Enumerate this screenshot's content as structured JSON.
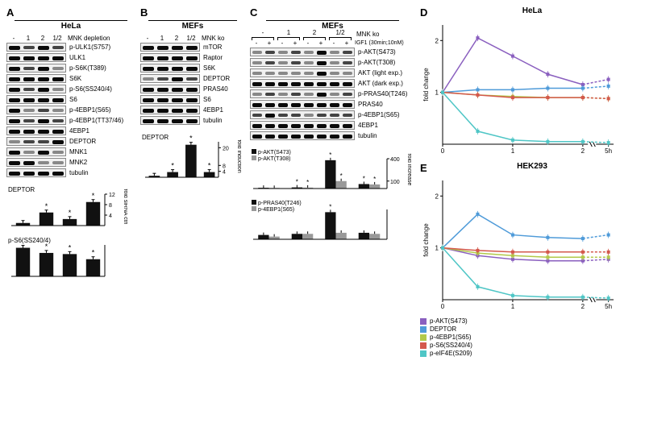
{
  "panelA": {
    "label": "A",
    "title": "HeLa",
    "header": {
      "lanes": [
        "-",
        "1",
        "2",
        "1/2"
      ],
      "right": "MNK depletion"
    },
    "blots": [
      {
        "label": "p-ULK1(S757)",
        "bands": [
          "strong",
          "med",
          "strong",
          "med"
        ]
      },
      {
        "label": "ULK1",
        "bands": [
          "strong",
          "strong",
          "strong",
          "strong"
        ]
      },
      {
        "label": "p-S6K(T389)",
        "bands": [
          "strong",
          "med",
          "strong",
          "faint"
        ]
      },
      {
        "label": "S6K",
        "bands": [
          "strong",
          "strong",
          "strong",
          "strong"
        ]
      },
      {
        "label": "p-S6(SS240/4)",
        "bands": [
          "strong",
          "med",
          "strong",
          "faint"
        ]
      },
      {
        "label": "S6",
        "bands": [
          "strong",
          "strong",
          "strong",
          "strong"
        ]
      },
      {
        "label": "p-4EBP1(S65)",
        "bands": [
          "strong",
          "faint",
          "med",
          "faint"
        ]
      },
      {
        "label": "p-4EBP1(TT37/46)",
        "bands": [
          "strong",
          "med",
          "strong",
          "med"
        ]
      },
      {
        "label": "4EBP1",
        "bands": [
          "strong",
          "strong",
          "strong",
          "strong"
        ]
      },
      {
        "label": "DEPTOR",
        "bands": [
          "faint",
          "med",
          "med",
          "strong"
        ]
      },
      {
        "label": "MNK1",
        "bands": [
          "strong",
          "faint",
          "strong",
          "faint"
        ]
      },
      {
        "label": "MNK2",
        "bands": [
          "strong",
          "strong",
          "faint",
          "faint"
        ]
      },
      {
        "label": "tubulin",
        "bands": [
          "strong",
          "strong",
          "strong",
          "strong"
        ]
      }
    ],
    "barcharts": [
      {
        "title": "DEPTOR",
        "categories": [
          "-",
          "1",
          "2",
          "1/2"
        ],
        "values": [
          1,
          5,
          2.5,
          9
        ],
        "stars": [
          0,
          1,
          1,
          1
        ],
        "ylim": [
          0,
          12
        ],
        "yticks": [
          4,
          8,
          12
        ],
        "bar_color": "#111111",
        "ylabel": "fold siRNA ctrl"
      },
      {
        "title": "p-S6(SS240/4)",
        "categories": [
          "-",
          "1",
          "2",
          "1/2"
        ],
        "values": [
          1,
          0.82,
          0.78,
          0.6
        ],
        "stars": [
          0,
          1,
          1,
          1
        ],
        "ylim": [
          0,
          1.1
        ],
        "yticks": [],
        "bar_color": "#111111",
        "ylabel": ""
      }
    ]
  },
  "panelB": {
    "label": "B",
    "title": "MEFs",
    "header": {
      "lanes": [
        "-",
        "1",
        "2",
        "1/2"
      ],
      "right": "MNK ko"
    },
    "blots": [
      {
        "label": "mTOR",
        "bands": [
          "strong",
          "strong",
          "strong",
          "strong"
        ]
      },
      {
        "label": "Raptor",
        "bands": [
          "strong",
          "strong",
          "strong",
          "strong"
        ]
      },
      {
        "label": "S6K",
        "bands": [
          "strong",
          "strong",
          "strong",
          "strong"
        ]
      },
      {
        "label": "DEPTOR",
        "bands": [
          "faint",
          "med",
          "strong",
          "med"
        ]
      },
      {
        "label": "PRAS40",
        "bands": [
          "strong",
          "strong",
          "strong",
          "strong"
        ]
      },
      {
        "label": "S6",
        "bands": [
          "strong",
          "strong",
          "strong",
          "strong"
        ]
      },
      {
        "label": "4EBP1",
        "bands": [
          "strong",
          "strong",
          "strong",
          "strong"
        ]
      },
      {
        "label": "tubulin",
        "bands": [
          "strong",
          "strong",
          "strong",
          "strong"
        ]
      }
    ],
    "barchart": {
      "title": "DEPTOR",
      "categories": [
        "-",
        "1",
        "2",
        "1/2"
      ],
      "values": [
        1,
        3.5,
        22,
        3.5
      ],
      "stars": [
        0,
        1,
        1,
        1
      ],
      "ylim": [
        0,
        24
      ],
      "yticks": [
        4,
        8,
        20
      ],
      "bar_color": "#111111",
      "ylabel": "fold induction"
    }
  },
  "panelC": {
    "label": "C",
    "title": "MEFs",
    "brackets": [
      "-",
      "1",
      "2",
      "1/2"
    ],
    "bracket_label": "MNK ko",
    "cond_label": "IGF1 (30min;10nM)",
    "cond": [
      "-",
      "+",
      "-",
      "+",
      "-",
      "+",
      "-",
      "+"
    ],
    "blots": [
      {
        "label": "p-AKT(S473)",
        "bands": [
          "faint",
          "med",
          "faint",
          "med",
          "faint",
          "strong",
          "faint",
          "med"
        ]
      },
      {
        "label": "p-AKT(T308)",
        "bands": [
          "faint",
          "med",
          "faint",
          "med",
          "faint",
          "strong",
          "faint",
          "med"
        ]
      },
      {
        "label": "AKT (light exp.)",
        "bands": [
          "faint",
          "faint",
          "faint",
          "faint",
          "faint",
          "strong",
          "faint",
          "faint"
        ]
      },
      {
        "label": "AKT (dark exp.)",
        "bands": [
          "strong",
          "strong",
          "strong",
          "strong",
          "strong",
          "strong",
          "strong",
          "strong"
        ]
      },
      {
        "label": "p-PRAS40(T246)",
        "bands": [
          "faint",
          "med",
          "faint",
          "med",
          "faint",
          "strong",
          "faint",
          "med"
        ]
      },
      {
        "label": "PRAS40",
        "bands": [
          "strong",
          "strong",
          "strong",
          "strong",
          "strong",
          "strong",
          "strong",
          "strong"
        ]
      },
      {
        "label": "p-4EBP1(S65)",
        "bands": [
          "med",
          "strong",
          "med",
          "med",
          "faint",
          "med",
          "med",
          "med"
        ]
      },
      {
        "label": "4EBP1",
        "bands": [
          "strong",
          "strong",
          "strong",
          "strong",
          "strong",
          "strong",
          "strong",
          "strong"
        ]
      },
      {
        "label": "tubulin",
        "bands": [
          "strong",
          "strong",
          "strong",
          "strong",
          "strong",
          "strong",
          "strong",
          "strong"
        ]
      }
    ],
    "barcharts": [
      {
        "stacks": [
          {
            "label": "p-AKT(S473)",
            "color": "#111111"
          },
          {
            "label": "p-AKT(T308)",
            "color": "#999999"
          }
        ],
        "categories": [
          "-",
          "1",
          "2",
          "1/2"
        ],
        "values": [
          [
            10,
            8
          ],
          [
            15,
            12
          ],
          [
            380,
            100
          ],
          [
            60,
            55
          ]
        ],
        "stars": [
          [
            0,
            0
          ],
          [
            1,
            1
          ],
          [
            1,
            1
          ],
          [
            1,
            1
          ]
        ],
        "ylim": [
          0,
          400
        ],
        "yticks": [
          100,
          400
        ],
        "ylabel": "fold increase"
      },
      {
        "stacks": [
          {
            "label": "p-PRAS40(T246)",
            "color": "#111111"
          },
          {
            "label": "p-4EBP1(S65)",
            "color": "#999999"
          }
        ],
        "categories": [
          "-",
          "1",
          "2",
          "1/2"
        ],
        "values": [
          [
            8,
            5
          ],
          [
            10,
            10
          ],
          [
            50,
            12
          ],
          [
            12,
            10
          ]
        ],
        "stars": [
          [
            0,
            0
          ],
          [
            0,
            0
          ],
          [
            1,
            0
          ],
          [
            0,
            0
          ]
        ],
        "ylim": [
          0,
          55
        ],
        "yticks": [],
        "ylabel": ""
      }
    ]
  },
  "panelD": {
    "label": "D",
    "title": "HeLa",
    "x": [
      0,
      0.5,
      1,
      1.5,
      2,
      5
    ],
    "xticks": [
      0,
      1,
      2,
      5
    ],
    "ylim": [
      0,
      2.3
    ],
    "yticks": [
      1,
      2
    ],
    "ylabel": "fold change",
    "series": [
      {
        "name": "p-AKT(S473)",
        "color": "#8a5fbf",
        "y": [
          1,
          2.05,
          1.7,
          1.35,
          1.15,
          1.25
        ]
      },
      {
        "name": "DEPTOR",
        "color": "#4f9bd9",
        "y": [
          1,
          1.05,
          1.05,
          1.08,
          1.08,
          1.12
        ]
      },
      {
        "name": "p-4EBP1(S65)",
        "color": "#b2c94a",
        "y": [
          1,
          0.95,
          0.92,
          0.9,
          0.9,
          0.88
        ]
      },
      {
        "name": "p-S6(SS240/4)",
        "color": "#d4584c",
        "y": [
          1,
          0.95,
          0.9,
          0.9,
          0.9,
          0.88
        ]
      },
      {
        "name": "p-eIF4E(S209)",
        "color": "#4fc6c6",
        "y": [
          1,
          0.25,
          0.08,
          0.05,
          0.05,
          0.03
        ]
      }
    ]
  },
  "panelE": {
    "label": "E",
    "title": "HEK293",
    "x": [
      0,
      0.5,
      1,
      1.5,
      2,
      5
    ],
    "xticks": [
      0,
      1,
      2,
      5
    ],
    "ylim": [
      0,
      2.3
    ],
    "yticks": [
      1,
      2
    ],
    "ylabel": "fold change",
    "series": [
      {
        "name": "p-AKT(S473)",
        "color": "#8a5fbf",
        "y": [
          1,
          0.85,
          0.78,
          0.75,
          0.75,
          0.78
        ]
      },
      {
        "name": "DEPTOR",
        "color": "#4f9bd9",
        "y": [
          1,
          1.65,
          1.25,
          1.2,
          1.18,
          1.25
        ]
      },
      {
        "name": "p-4EBP1(S65)",
        "color": "#b2c94a",
        "y": [
          1,
          0.9,
          0.85,
          0.82,
          0.82,
          0.82
        ]
      },
      {
        "name": "p-S6(SS240/4)",
        "color": "#d4584c",
        "y": [
          1,
          0.95,
          0.92,
          0.92,
          0.92,
          0.92
        ]
      },
      {
        "name": "p-eIF4E(S209)",
        "color": "#4fc6c6",
        "y": [
          1,
          0.25,
          0.08,
          0.05,
          0.05,
          0.03
        ]
      }
    ]
  },
  "legend": {
    "items": [
      {
        "label": "p-AKT(S473)",
        "color": "#8a5fbf"
      },
      {
        "label": "DEPTOR",
        "color": "#4f9bd9"
      },
      {
        "label": "p-4EBP1(S65)",
        "color": "#b2c94a"
      },
      {
        "label": "p-S6(SS240/4)",
        "color": "#d4584c"
      },
      {
        "label": "p-eIF4E(S209)",
        "color": "#4fc6c6"
      }
    ]
  }
}
